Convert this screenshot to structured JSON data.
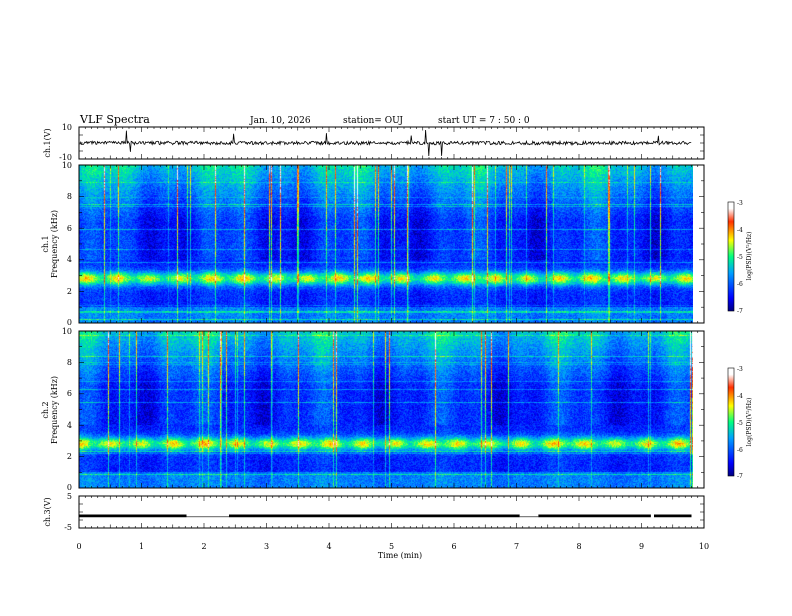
{
  "header": {
    "title": "VLF Spectra",
    "date": "Jan. 10, 2026",
    "station": "station= OUJ",
    "start": "start  UT =   7 : 50 : 0"
  },
  "chart_data": [
    {
      "id": "ch1-waveform",
      "type": "line",
      "ylabel": "ch.1(V)",
      "ylim": [
        -10,
        10
      ],
      "yticks": [
        "10",
        "-10"
      ],
      "xlim": [
        0,
        10
      ],
      "baseline": 0
    },
    {
      "id": "ch1-spectrogram",
      "type": "heatmap",
      "ylabel_line1": "ch.1",
      "ylabel_line2": "Frequency (kHz)",
      "ylim": [
        0,
        10
      ],
      "yticks": [
        "0",
        "2",
        "4",
        "6",
        "8",
        "10"
      ],
      "xlim": [
        0,
        10
      ],
      "band_center_khz": 2.8,
      "colorbar": {
        "label": "log(PSD)(V²/Hz)",
        "ticks": [
          "-3",
          "-4",
          "-5",
          "-6",
          "-7"
        ],
        "range": [
          -7,
          -3
        ]
      }
    },
    {
      "id": "ch2-spectrogram",
      "type": "heatmap",
      "ylabel_line1": "ch.2",
      "ylabel_line2": "Frequency (kHz)",
      "ylim": [
        0,
        10
      ],
      "yticks": [
        "0",
        "2",
        "4",
        "6",
        "8",
        "10"
      ],
      "xlim": [
        0,
        10
      ],
      "band_center_khz": 2.8,
      "colorbar": {
        "label": "log(PSD)(V²/Hz)",
        "ticks": [
          "-3",
          "-4",
          "-5",
          "-6",
          "-7"
        ],
        "range": [
          -7,
          -3
        ]
      }
    },
    {
      "id": "ch3-level",
      "type": "line",
      "ylabel": "ch.3(V)",
      "ylim": [
        -5,
        5
      ],
      "yticks": [
        "5",
        "-5"
      ],
      "xlim": [
        0,
        10
      ],
      "level": -1.2,
      "segments": [
        [
          0,
          1.72
        ],
        [
          2.4,
          7.05
        ],
        [
          7.35,
          9.15
        ],
        [
          9.2,
          9.8
        ]
      ],
      "xlabel": "Time  (min)",
      "xticks": [
        "0",
        "1",
        "2",
        "3",
        "4",
        "5",
        "6",
        "7",
        "8",
        "9",
        "10"
      ]
    }
  ]
}
